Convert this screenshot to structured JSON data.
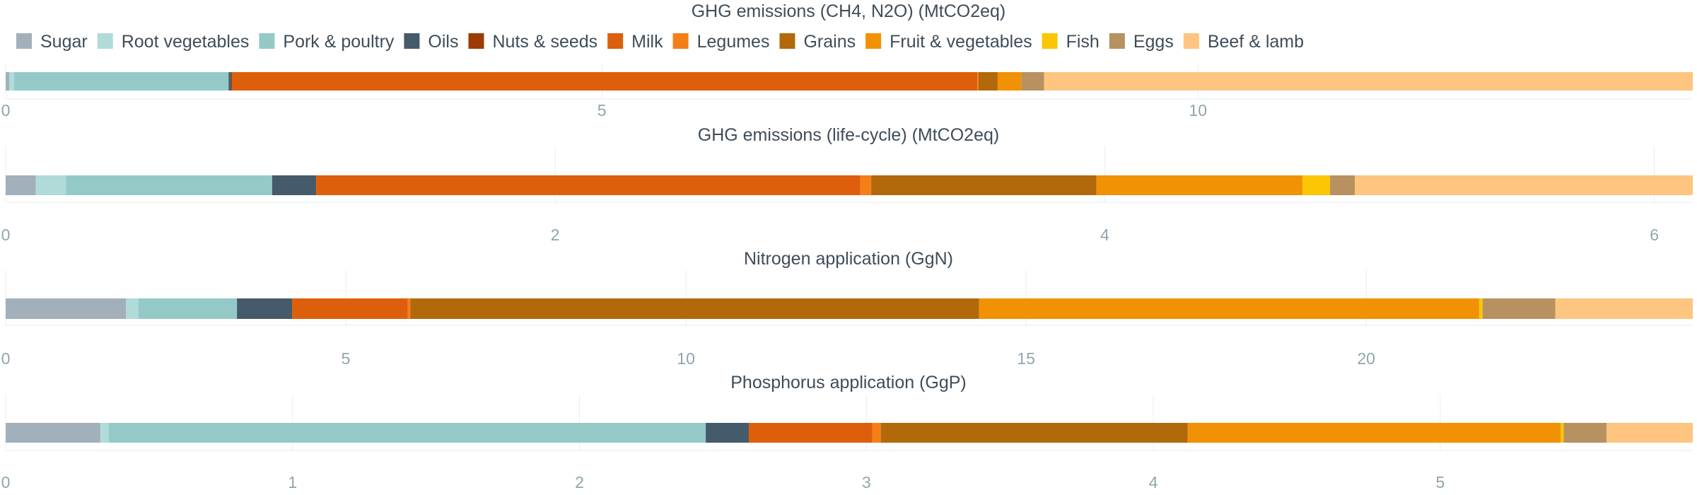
{
  "chart_data": {
    "type": "bar",
    "orientation": "horizontal-stacked",
    "legend_position": "top-left",
    "grid": true,
    "categories": [
      "Sugar",
      "Root vegetables",
      "Pork & poultry",
      "Oils",
      "Nuts & seeds",
      "Milk",
      "Legumes",
      "Grains",
      "Fruit & vegetables",
      "Fish",
      "Eggs",
      "Beef & lamb"
    ],
    "colors": [
      "#a2b0bc",
      "#b0dbd8",
      "#94c9c8",
      "#455a6a",
      "#9c3b05",
      "#de5f0b",
      "#f57f17",
      "#b2690c",
      "#f19104",
      "#fbc603",
      "#b89160",
      "#fdc57f"
    ],
    "panels": [
      {
        "title": "GHG emissions (CH4, N2O) (MtCO2eq)",
        "xlim": [
          0,
          14.15
        ],
        "ticks": [
          0,
          5,
          10
        ],
        "tick_labels": [
          "0",
          "5",
          "10"
        ],
        "values": [
          0.03,
          0.04,
          1.8,
          0.02,
          0.01,
          6.25,
          0.01,
          0.16,
          0.2,
          0.0,
          0.19,
          5.44
        ]
      },
      {
        "title": "GHG emissions (life-cycle) (MtCO2eq)",
        "xlim": [
          0,
          6.14
        ],
        "ticks": [
          0,
          2,
          4,
          6
        ],
        "tick_labels": [
          "0",
          "2",
          "4",
          "6"
        ],
        "values": [
          0.11,
          0.11,
          0.75,
          0.16,
          0.0,
          1.98,
          0.04,
          0.82,
          0.75,
          0.1,
          0.09,
          1.23
        ]
      },
      {
        "title": "Nitrogen application (GgN)",
        "xlim": [
          0,
          24.8
        ],
        "ticks": [
          0,
          5,
          10,
          15,
          20
        ],
        "tick_labels": [
          "0",
          "5",
          "10",
          "15",
          "20"
        ],
        "values": [
          1.77,
          0.18,
          1.45,
          0.81,
          0.0,
          1.7,
          0.04,
          8.36,
          7.35,
          0.05,
          1.07,
          2.02
        ]
      },
      {
        "title": "Phosphorus application (GgP)",
        "xlim": [
          0,
          5.88
        ],
        "ticks": [
          0,
          1,
          2,
          3,
          4,
          5
        ],
        "tick_labels": [
          "0",
          "1",
          "2",
          "3",
          "4",
          "5"
        ],
        "values": [
          0.33,
          0.03,
          2.08,
          0.15,
          0.0,
          0.43,
          0.03,
          1.07,
          1.3,
          0.01,
          0.15,
          0.3
        ]
      }
    ]
  }
}
